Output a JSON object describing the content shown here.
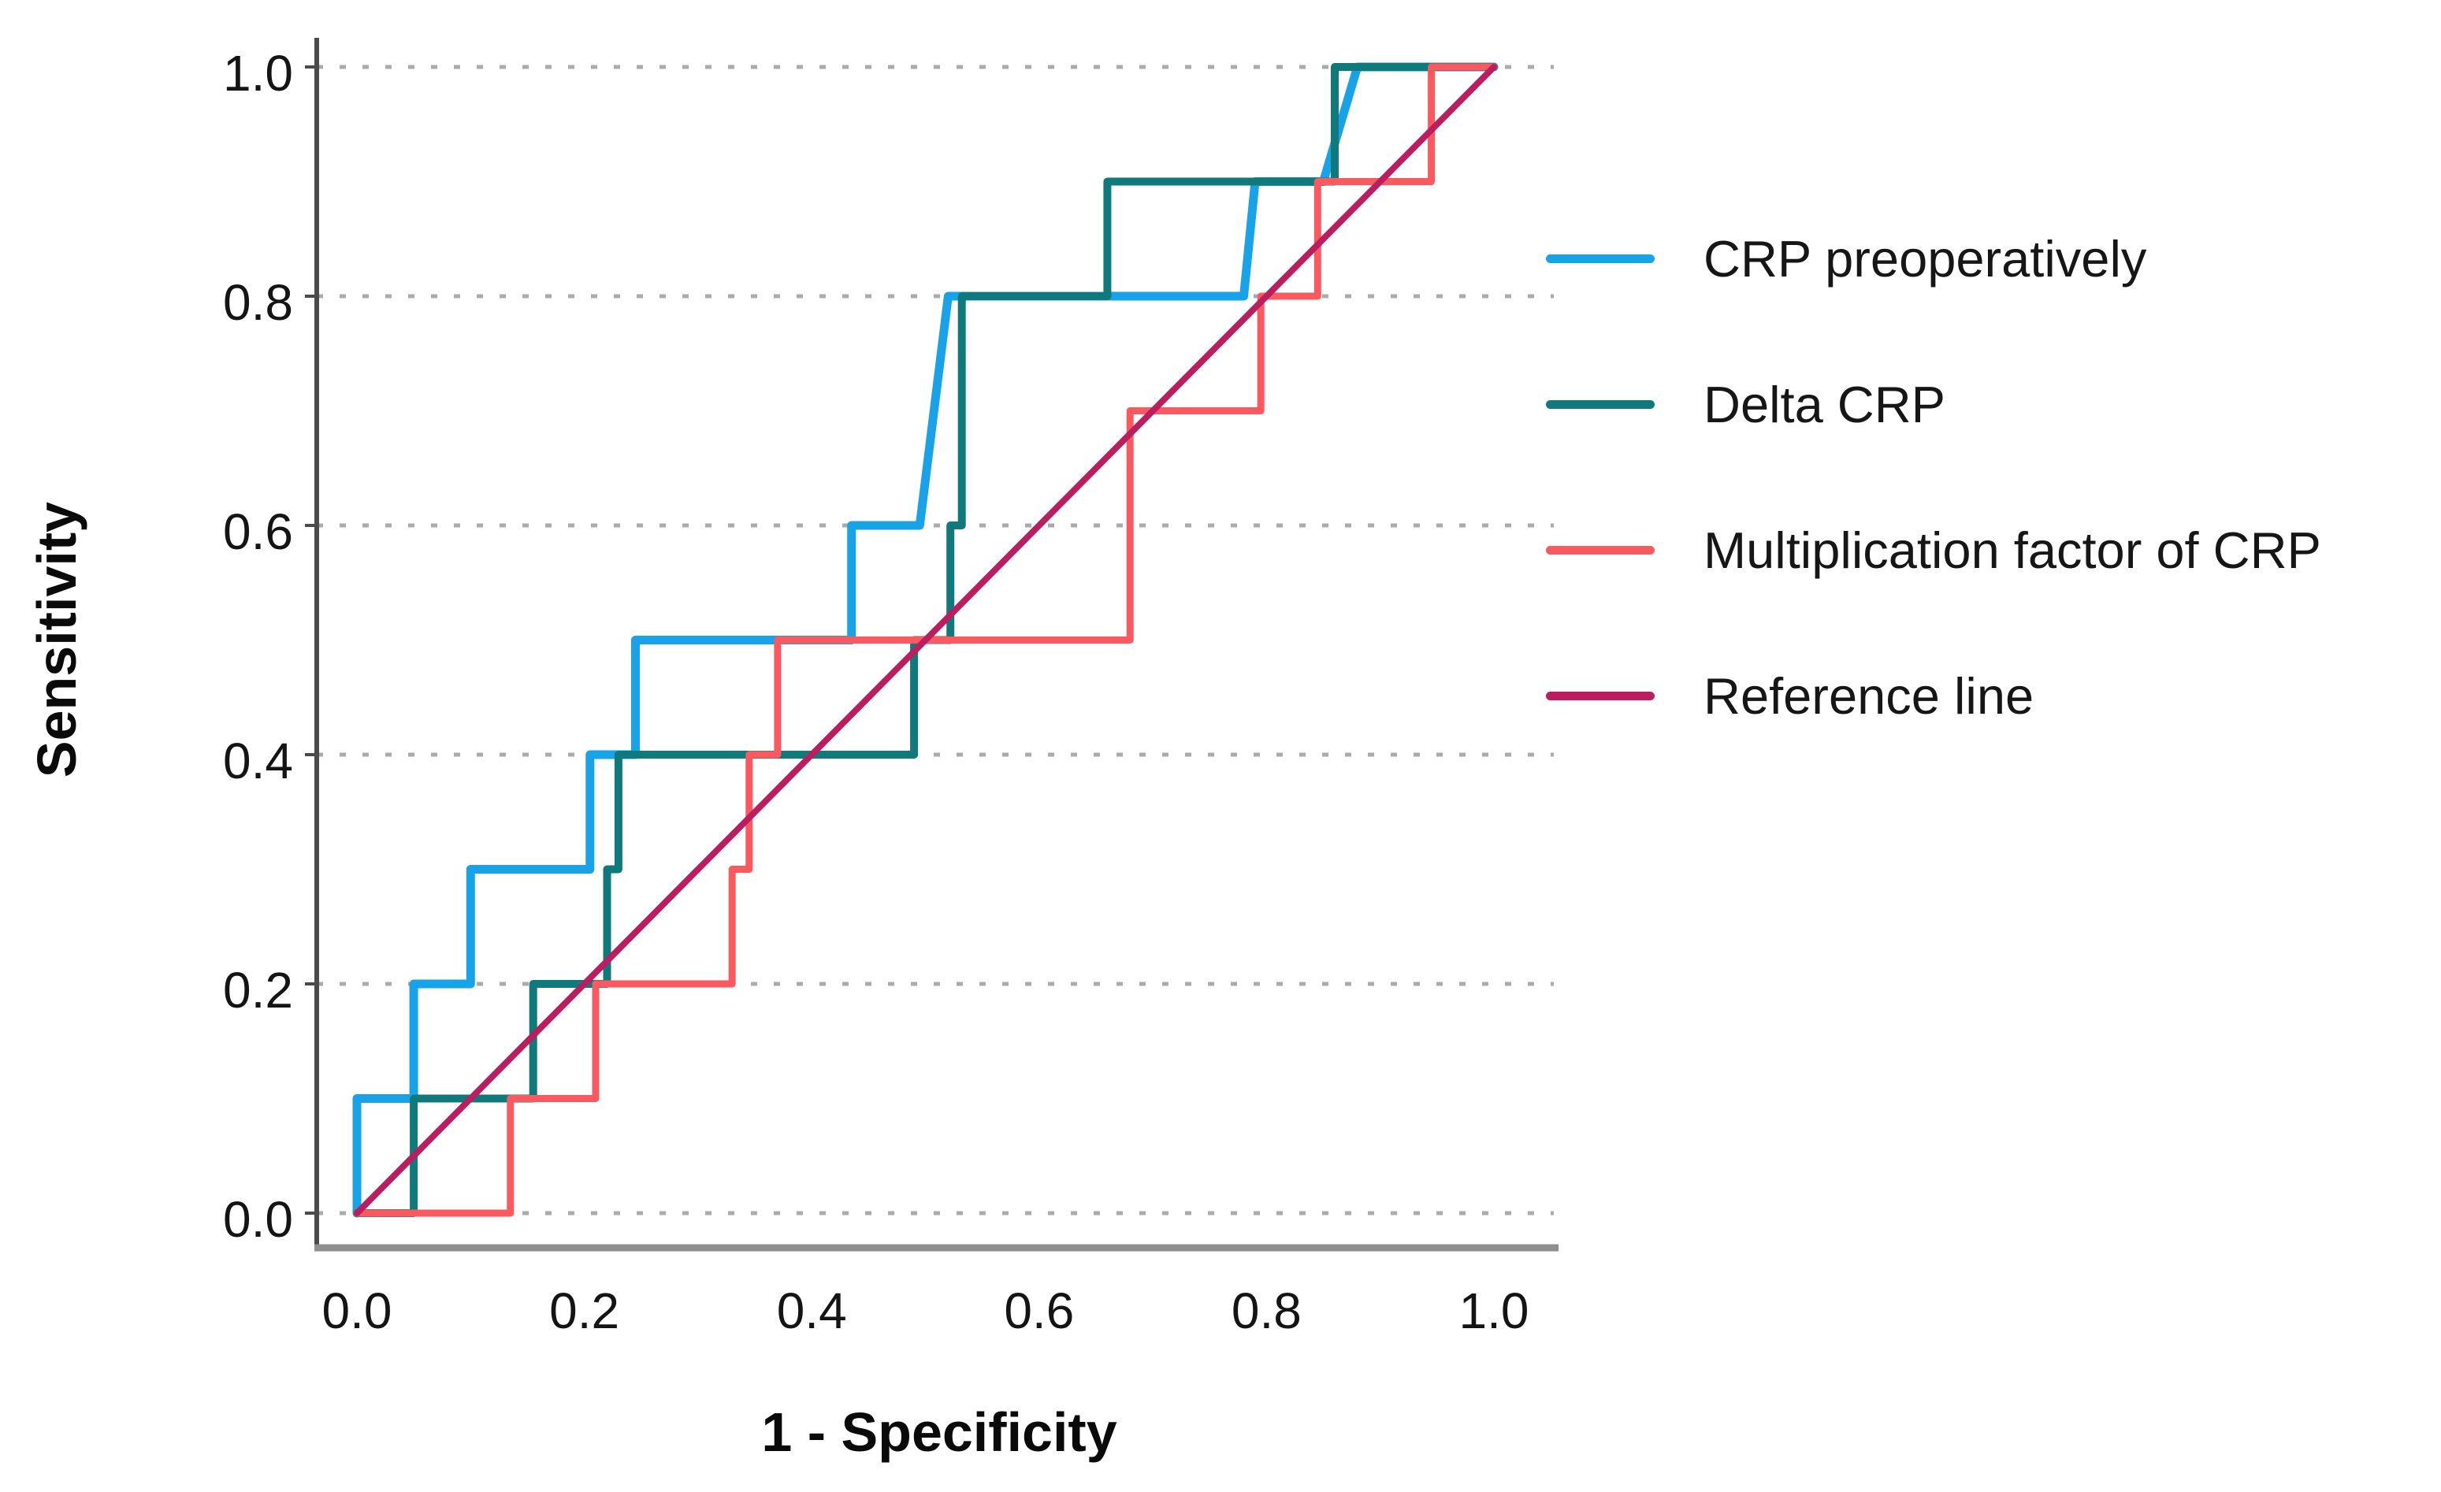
{
  "chart_data": {
    "type": "line",
    "subtype": "roc-step-curves",
    "title": "",
    "xlabel": "1 - Specificity",
    "ylabel": "Sensitivity",
    "xlim": [
      0,
      1
    ],
    "ylim": [
      0,
      1
    ],
    "x_ticks": [
      "0.0",
      "0.2",
      "0.4",
      "0.6",
      "0.8",
      "1.0"
    ],
    "y_ticks": [
      "0.0",
      "0.2",
      "0.4",
      "0.6",
      "0.8",
      "1.0"
    ],
    "grid": "horizontal-dotted",
    "grid_color": "#ababab",
    "axis_color": "#4a4a4a",
    "bottom_axis_color": "#8f8f8f",
    "legend_position": "right",
    "series": [
      {
        "name": "CRP preoperatively",
        "color": "#18A3E8",
        "width": 11,
        "points": [
          [
            0,
            0
          ],
          [
            0,
            0.1
          ],
          [
            0.05,
            0.1
          ],
          [
            0.05,
            0.2
          ],
          [
            0.1,
            0.2
          ],
          [
            0.1,
            0.3
          ],
          [
            0.205,
            0.3
          ],
          [
            0.205,
            0.4
          ],
          [
            0.245,
            0.4
          ],
          [
            0.245,
            0.5
          ],
          [
            0.435,
            0.5
          ],
          [
            0.435,
            0.6
          ],
          [
            0.495,
            0.6
          ],
          [
            0.52,
            0.8
          ],
          [
            0.78,
            0.8
          ],
          [
            0.79,
            0.9
          ],
          [
            0.85,
            0.9
          ],
          [
            0.88,
            1
          ],
          [
            1,
            1
          ]
        ]
      },
      {
        "name": "Delta CRP",
        "color": "#10797B",
        "width": 10,
        "points": [
          [
            0,
            0
          ],
          [
            0.05,
            0
          ],
          [
            0.05,
            0.1
          ],
          [
            0.155,
            0.1
          ],
          [
            0.155,
            0.2
          ],
          [
            0.22,
            0.2
          ],
          [
            0.22,
            0.3
          ],
          [
            0.23,
            0.3
          ],
          [
            0.23,
            0.4
          ],
          [
            0.49,
            0.4
          ],
          [
            0.49,
            0.5
          ],
          [
            0.522,
            0.5
          ],
          [
            0.522,
            0.6
          ],
          [
            0.532,
            0.6
          ],
          [
            0.532,
            0.8
          ],
          [
            0.66,
            0.8
          ],
          [
            0.66,
            0.9
          ],
          [
            0.86,
            0.9
          ],
          [
            0.86,
            1
          ],
          [
            1,
            1
          ]
        ]
      },
      {
        "name": "Multiplication factor of CRP",
        "color": "#FA5960",
        "width": 9,
        "points": [
          [
            0,
            0
          ],
          [
            0.135,
            0
          ],
          [
            0.135,
            0.1
          ],
          [
            0.21,
            0.1
          ],
          [
            0.21,
            0.2
          ],
          [
            0.33,
            0.2
          ],
          [
            0.33,
            0.3
          ],
          [
            0.345,
            0.3
          ],
          [
            0.345,
            0.4
          ],
          [
            0.37,
            0.4
          ],
          [
            0.37,
            0.5
          ],
          [
            0.68,
            0.5
          ],
          [
            0.68,
            0.7
          ],
          [
            0.795,
            0.7
          ],
          [
            0.795,
            0.8
          ],
          [
            0.845,
            0.8
          ],
          [
            0.845,
            0.9
          ],
          [
            0.945,
            0.9
          ],
          [
            0.945,
            1
          ],
          [
            1,
            1
          ]
        ]
      },
      {
        "name": "Reference line",
        "color": "#BB1E5F",
        "width": 8,
        "points": [
          [
            0,
            0
          ],
          [
            1,
            1
          ]
        ]
      }
    ]
  }
}
